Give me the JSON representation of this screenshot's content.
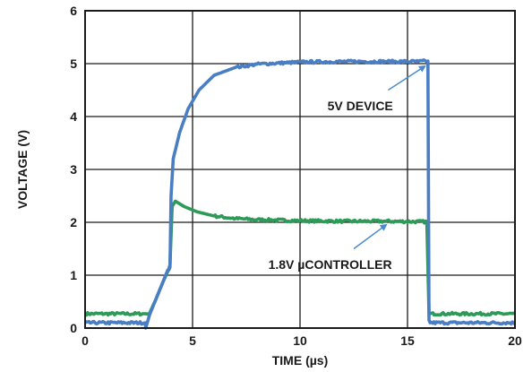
{
  "chart_data": {
    "type": "line",
    "title": "",
    "xlabel": "TIME (µs)",
    "ylabel": "VOLTAGE (V)",
    "xlim": [
      0,
      20
    ],
    "ylim": [
      0,
      6
    ],
    "x_ticks": [
      0,
      5,
      10,
      15,
      20
    ],
    "y_ticks": [
      0,
      1,
      2,
      3,
      4,
      5,
      6
    ],
    "grid": true,
    "series": [
      {
        "color": "#4a7ec4",
        "points": [
          [
            0,
            0.1
          ],
          [
            2.8,
            0.1
          ],
          [
            2.82,
            0.0
          ],
          [
            3.0,
            0.25
          ],
          [
            3.3,
            0.55
          ],
          [
            3.6,
            0.85
          ],
          [
            3.85,
            1.1
          ],
          [
            3.95,
            1.15
          ],
          [
            4.0,
            2.5
          ],
          [
            4.1,
            3.2
          ],
          [
            4.4,
            3.7
          ],
          [
            4.8,
            4.15
          ],
          [
            5.3,
            4.5
          ],
          [
            6.0,
            4.78
          ],
          [
            7.0,
            4.93
          ],
          [
            8.0,
            4.99
          ],
          [
            10.0,
            5.03
          ],
          [
            12.0,
            5.04
          ],
          [
            14.0,
            5.04
          ],
          [
            15.5,
            5.04
          ],
          [
            15.95,
            5.05
          ],
          [
            16.0,
            0.15
          ],
          [
            16.05,
            0.1
          ],
          [
            20.0,
            0.1
          ]
        ]
      },
      {
        "color": "#2e9a57",
        "points": [
          [
            0,
            0.27
          ],
          [
            2.8,
            0.27
          ],
          [
            3.0,
            0.28
          ],
          [
            3.3,
            0.55
          ],
          [
            3.6,
            0.85
          ],
          [
            3.9,
            1.12
          ],
          [
            3.95,
            1.2
          ],
          [
            4.05,
            2.3
          ],
          [
            4.2,
            2.4
          ],
          [
            4.6,
            2.3
          ],
          [
            5.2,
            2.2
          ],
          [
            6.0,
            2.12
          ],
          [
            7.0,
            2.07
          ],
          [
            8.0,
            2.05
          ],
          [
            10.0,
            2.03
          ],
          [
            12.0,
            2.02
          ],
          [
            14.0,
            2.02
          ],
          [
            15.9,
            2.01
          ],
          [
            16.0,
            0.27
          ],
          [
            20.0,
            0.27
          ]
        ]
      }
    ],
    "annotations": [
      {
        "text": "5V DEVICE",
        "label_at": [
          12.8,
          4.2
        ],
        "arrow_from": [
          14.1,
          4.5
        ],
        "arrow_to": [
          15.8,
          4.95
        ]
      },
      {
        "text": "1.8V µCONTROLLER",
        "label_at": [
          11.4,
          1.2
        ],
        "arrow_from": [
          12.5,
          1.5
        ],
        "arrow_to": [
          14.0,
          1.95
        ]
      }
    ]
  }
}
